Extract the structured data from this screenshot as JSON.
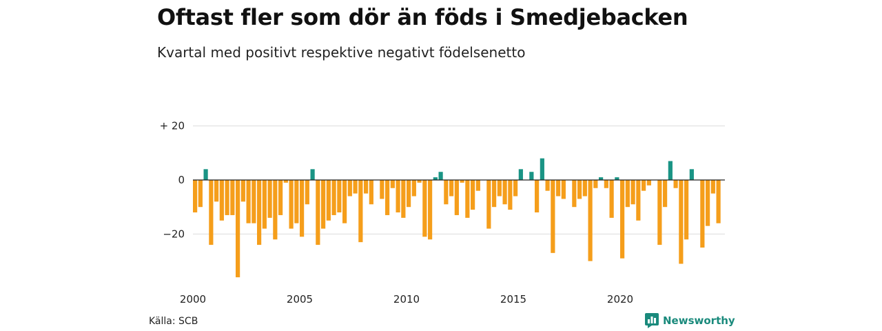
{
  "header": {
    "title": "Oftast fler som dör än föds i Smedjebacken",
    "subtitle": "Kvartal med positivt respektive negativt födelsenetto"
  },
  "footer": {
    "source": "Källa: SCB",
    "brand": "Newsworthy"
  },
  "colors": {
    "positive": "#1a9485",
    "negative": "#f59e1b",
    "grid": "#dcdcdc",
    "zero_line": "#222222",
    "brand": "#1a8a7c"
  },
  "chart_data": {
    "type": "bar",
    "x_start": "2000 Q1",
    "frequency": "quarterly",
    "ylim": [
      -36,
      22
    ],
    "y_ticks": [
      {
        "value": 20,
        "label": "+ 20"
      },
      {
        "value": 0,
        "label": "0"
      },
      {
        "value": -20,
        "label": "−20"
      }
    ],
    "x_ticks": [
      "2000",
      "2005",
      "2010",
      "2015",
      "2020"
    ],
    "grid": true,
    "values": [
      -12,
      -10,
      4,
      -24,
      -8,
      -15,
      -13,
      -13,
      -36,
      -8,
      -16,
      -16,
      -24,
      -18,
      -14,
      -22,
      -13,
      -1,
      -18,
      -16,
      -21,
      -9,
      4,
      -24,
      -18,
      -15,
      -13,
      -12,
      -16,
      -6,
      -5,
      -23,
      -5,
      -9,
      0,
      -7,
      -13,
      -3,
      -12,
      -14,
      -10,
      -6,
      -1,
      -21,
      -22,
      1,
      3,
      -9,
      -6,
      -13,
      -1,
      -14,
      -11,
      -4,
      0,
      -18,
      -10,
      -6,
      -9,
      -11,
      -6,
      4,
      0,
      3,
      -12,
      8,
      -4,
      -27,
      -6,
      -7,
      0,
      -10,
      -7,
      -6,
      -30,
      -3,
      1,
      -3,
      -14,
      1,
      -29,
      -10,
      -9,
      -15,
      -4,
      -2,
      0,
      -24,
      -10,
      7,
      -3,
      -31,
      -22,
      4,
      0,
      -25,
      -17,
      -5,
      -16
    ]
  }
}
